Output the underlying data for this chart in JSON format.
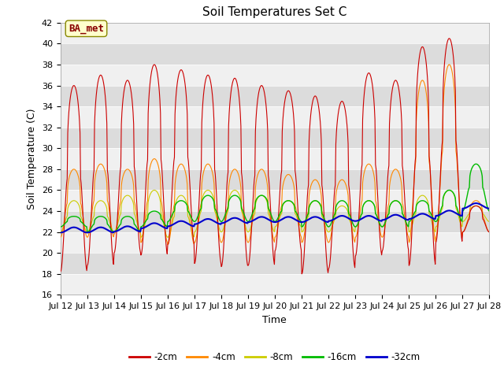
{
  "title": "Soil Temperatures Set C",
  "xlabel": "Time",
  "ylabel": "Soil Temperature (C)",
  "ylim": [
    16,
    42
  ],
  "yticks": [
    16,
    18,
    20,
    22,
    24,
    26,
    28,
    30,
    32,
    34,
    36,
    38,
    40,
    42
  ],
  "colors": {
    "-2cm": "#cc0000",
    "-4cm": "#ff8800",
    "-8cm": "#cccc00",
    "-16cm": "#00bb00",
    "-32cm": "#0000cc"
  },
  "legend_labels": [
    "-2cm",
    "-4cm",
    "-8cm",
    "-16cm",
    "-32cm"
  ],
  "annotation_text": "BA_met",
  "annotation_bg": "#ffffcc",
  "annotation_border": "#888800",
  "plot_bg_light": "#f0f0f0",
  "plot_bg_dark": "#dcdcdc",
  "title_fontsize": 11,
  "axis_label_fontsize": 9,
  "tick_fontsize": 8,
  "n_days": 16,
  "start_day": 12,
  "peaks_2cm": [
    36,
    37,
    36.5,
    38,
    37.5,
    37,
    36.7,
    36,
    35.5,
    35,
    34.5,
    37.2,
    36.5,
    39.7,
    40.5,
    24.5
  ],
  "troughs_2cm": [
    18.2,
    18.8,
    20.0,
    19.8,
    20.8,
    19.0,
    18.7,
    18.8,
    20.2,
    18.0,
    18.5,
    19.7,
    20.2,
    18.8,
    21.0,
    22.0
  ],
  "peaks_4cm": [
    28.0,
    28.5,
    28.0,
    29.0,
    28.5,
    28.5,
    28.0,
    28.0,
    27.5,
    27.0,
    27.0,
    28.5,
    28.0,
    36.5,
    38.0,
    25.0
  ],
  "troughs_4cm": [
    21.5,
    21.5,
    21.8,
    21.0,
    20.8,
    21.0,
    21.0,
    21.0,
    21.5,
    21.0,
    21.0,
    21.5,
    21.5,
    21.0,
    21.5,
    22.0
  ],
  "peaks_8cm": [
    25.0,
    25.0,
    25.5,
    26.0,
    25.5,
    26.0,
    26.0,
    25.5,
    25.0,
    25.0,
    24.5,
    25.0,
    25.0,
    25.5,
    26.0,
    24.5
  ],
  "troughs_8cm": [
    22.0,
    22.0,
    22.0,
    21.5,
    21.5,
    22.0,
    22.0,
    22.0,
    22.5,
    22.0,
    22.0,
    22.5,
    22.5,
    22.0,
    22.5,
    23.0
  ],
  "peaks_16cm": [
    23.5,
    23.5,
    23.5,
    24.0,
    25.0,
    25.5,
    25.5,
    25.5,
    25.0,
    25.0,
    25.0,
    25.0,
    25.0,
    25.0,
    26.0,
    28.5
  ],
  "troughs_16cm": [
    22.5,
    22.0,
    22.0,
    22.5,
    23.0,
    23.0,
    23.0,
    23.0,
    23.0,
    22.5,
    22.5,
    22.5,
    22.5,
    23.0,
    23.0,
    24.0
  ],
  "base_32cm": [
    22.2,
    22.2,
    22.3,
    22.6,
    22.8,
    23.0,
    23.1,
    23.2,
    23.2,
    23.2,
    23.3,
    23.3,
    23.4,
    23.5,
    23.8,
    24.5
  ]
}
